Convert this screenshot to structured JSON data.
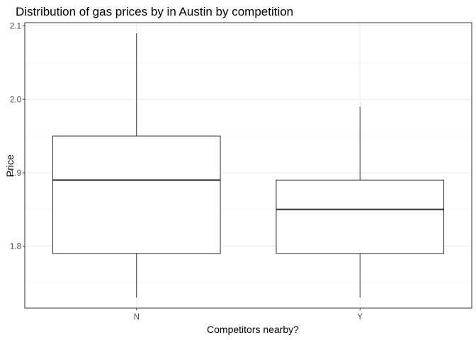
{
  "chart_data": {
    "type": "boxplot",
    "title": "Distribution of gas prices by in Austin by competition",
    "xlabel": "Competitors nearby?",
    "ylabel": "Price",
    "categories": [
      "N",
      "Y"
    ],
    "boxes": [
      {
        "category": "N",
        "whisker_low": 1.73,
        "q1": 1.79,
        "median": 1.89,
        "q3": 1.95,
        "whisker_high": 2.09
      },
      {
        "category": "Y",
        "whisker_low": 1.73,
        "q1": 1.79,
        "median": 1.85,
        "q3": 1.89,
        "whisker_high": 1.99
      }
    ],
    "y_ticks": [
      1.8,
      1.9,
      2.0,
      2.1
    ],
    "y_tick_labels": [
      "1.8",
      "1.9",
      "2.0",
      "2.1"
    ],
    "ylim": [
      1.7155,
      2.1045
    ],
    "grid": true,
    "legend": "none"
  },
  "colors": {
    "box_outline": "#333333",
    "median_line": "#333333",
    "grid_major": "#ebebeb",
    "grid_minor": "#f3f3f3",
    "panel_border": "#333333",
    "tick_text": "#4d4d4d"
  }
}
